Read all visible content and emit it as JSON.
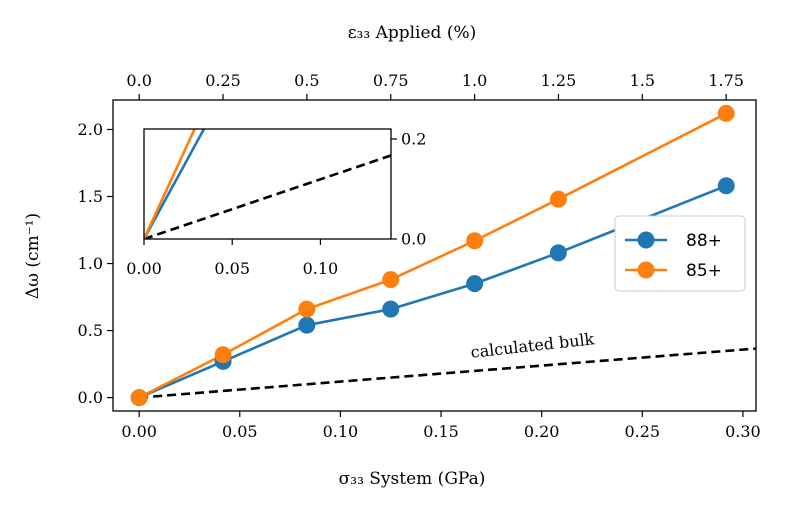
{
  "chart_data": {
    "type": "line",
    "xlabel": "σ₃₃ System (GPa)",
    "ylabel": "Δω (cm⁻¹)",
    "top_xlabel": "ε₃₃ Applied (%)",
    "xlim": [
      -0.013,
      0.3065
    ],
    "ylim": [
      -0.1,
      2.22
    ],
    "x_ticks": [
      0.0,
      0.05,
      0.1,
      0.15,
      0.2,
      0.25,
      0.3
    ],
    "x_tick_labels": [
      "0.00",
      "0.05",
      "0.10",
      "0.15",
      "0.20",
      "0.25",
      "0.30"
    ],
    "y_ticks": [
      0.0,
      0.5,
      1.0,
      1.5,
      2.0
    ],
    "y_tick_labels": [
      "0.0",
      "0.5",
      "1.0",
      "1.5",
      "2.0"
    ],
    "top_ticks": [
      0.0,
      0.25,
      0.5,
      0.75,
      1.0,
      1.25,
      1.5,
      1.75
    ],
    "top_tick_labels": [
      "0.0",
      "0.25",
      "0.5",
      "0.75",
      "1.0",
      "1.25",
      "1.5",
      "1.75"
    ],
    "top_to_bottom_factor": 0.16667,
    "series": [
      {
        "name": "88+",
        "color": "#1f77b4",
        "x": [
          0.0,
          0.0417,
          0.0833,
          0.125,
          0.1667,
          0.2083,
          0.2917
        ],
        "y": [
          0.0,
          0.27,
          0.54,
          0.66,
          0.85,
          1.08,
          1.58
        ]
      },
      {
        "name": "85+",
        "color": "#ff7f0e",
        "x": [
          0.0,
          0.0417,
          0.0833,
          0.125,
          0.1667,
          0.2083,
          0.2917
        ],
        "y": [
          0.0,
          0.32,
          0.66,
          0.88,
          1.17,
          1.48,
          2.12
        ]
      }
    ],
    "bulk_line": {
      "label": "calculated bulk",
      "color": "#000000",
      "style": "dashed",
      "x": [
        0.0,
        0.31
      ],
      "y": [
        0.0,
        0.37
      ]
    },
    "legend": {
      "position": "right",
      "entries": [
        "88+",
        "85+"
      ]
    },
    "inset": {
      "xlim": [
        0.0,
        0.14
      ],
      "ylim": [
        0.0,
        0.22
      ],
      "x_ticks": [
        0.0,
        0.05,
        0.1
      ],
      "x_tick_labels": [
        "0.00",
        "0.05",
        "0.10"
      ],
      "y_ticks": [
        0.0,
        0.2
      ],
      "y_tick_labels": [
        "0.0",
        "0.2"
      ],
      "y_axis_side": "right"
    }
  }
}
